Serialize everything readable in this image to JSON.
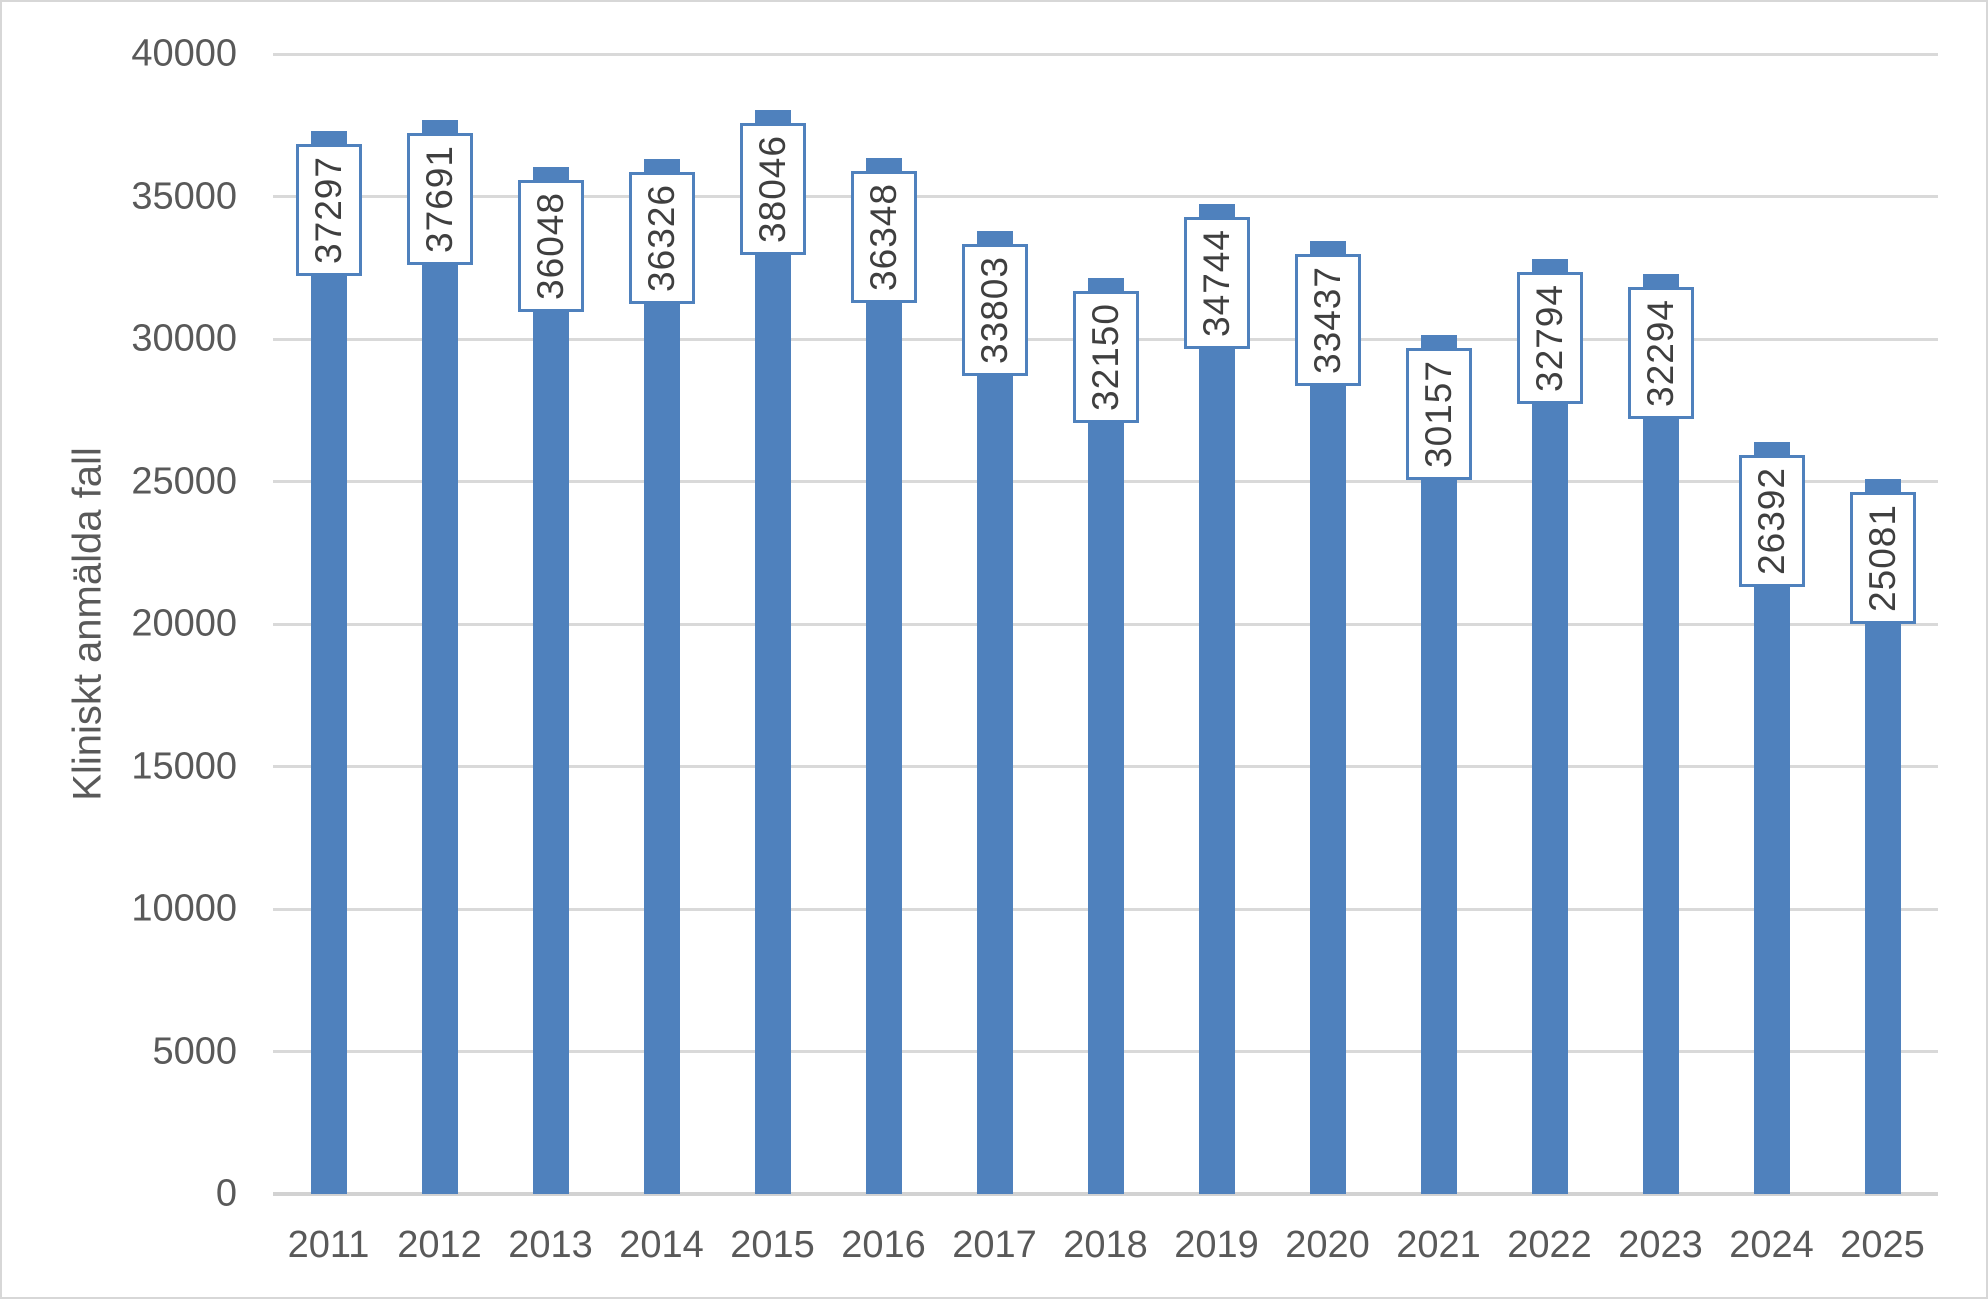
{
  "chart_data": {
    "type": "bar",
    "title": "",
    "xlabel": "",
    "ylabel": "Kliniskt anmälda fall",
    "categories": [
      "2011",
      "2012",
      "2013",
      "2014",
      "2015",
      "2016",
      "2017",
      "2018",
      "2019",
      "2020",
      "2021",
      "2022",
      "2023",
      "2024",
      "2025"
    ],
    "values": [
      37297,
      37691,
      36048,
      36326,
      38046,
      36348,
      33803,
      32150,
      34744,
      33437,
      30157,
      32794,
      32294,
      26392,
      25081
    ],
    "data_labels": [
      "37297",
      "37691",
      "36048",
      "36326",
      "38046",
      "36348",
      "33803",
      "32150",
      "34744",
      "33437",
      "30157",
      "32794",
      "32294",
      "26392",
      "25081"
    ],
    "ylim": [
      0,
      40000
    ],
    "ytick_step": 5000,
    "ytick_labels": [
      "0",
      "5000",
      "10000",
      "15000",
      "20000",
      "25000",
      "30000",
      "35000",
      "40000"
    ],
    "grid": "horizontal",
    "legend": "none",
    "data_label_style": "rotated-90 in white box with blue border, inside end of bar",
    "colors": {
      "bar_fill": "#4F81BD",
      "label_box_border": "#4F81BD",
      "label_box_fill": "#FFFFFF",
      "label_text": "#3F3F3F",
      "axis_text": "#595959",
      "gridline": "#D9D9D9",
      "axis_line": "#D2D2D2",
      "chart_border": "#D7D7D7",
      "background": "#FFFFFF"
    }
  }
}
